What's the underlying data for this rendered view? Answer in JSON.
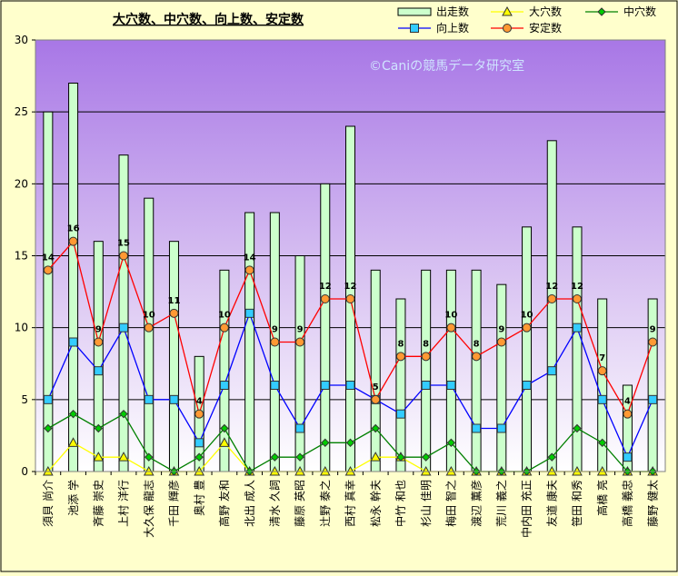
{
  "chart_data": {
    "type": "bar",
    "title": "大穴数、中穴数、向上数、安定数",
    "watermark": "©Caniの競馬データ研究室",
    "ylim": [
      0,
      30
    ],
    "yticks": [
      0,
      5,
      10,
      15,
      20,
      25,
      30
    ],
    "grid": true,
    "legend_position": "top-right",
    "categories": [
      "須貝 尚介",
      "池添 学",
      "斉藤 崇史",
      "上村 洋行",
      "大久保 龍志",
      "千田 輝彦",
      "奥村 豊",
      "高野 友和",
      "北出 成人",
      "清水 久詞",
      "藤原 英昭",
      "辻野 泰之",
      "西村 真幸",
      "松永 幹夫",
      "中竹 和也",
      "杉山 佳明",
      "梅田 智之",
      "渡辺 薫彦",
      "荒川 義之",
      "中内田 充正",
      "友道 康夫",
      "笹田 和秀",
      "高橋 亮",
      "高橋 義忠",
      "藤野 健太"
    ],
    "series": [
      {
        "name": "出走数",
        "kind": "bar",
        "color": "#CCFFCC",
        "stroke": "#000000",
        "values": [
          25,
          27,
          16,
          22,
          19,
          16,
          8,
          14,
          18,
          18,
          15,
          20,
          24,
          14,
          12,
          14,
          14,
          14,
          13,
          17,
          23,
          17,
          12,
          6,
          12
        ]
      },
      {
        "name": "大穴数",
        "kind": "line",
        "marker": "triangle",
        "color": "#FFFF00",
        "marker_fill": "#FFFF00",
        "values": [
          0,
          2,
          1,
          1,
          0,
          0,
          0,
          2,
          0,
          0,
          0,
          0,
          0,
          1,
          1,
          0,
          0,
          0,
          0,
          0,
          0,
          0,
          0,
          0,
          0
        ]
      },
      {
        "name": "中穴数",
        "kind": "line",
        "marker": "diamond",
        "color": "#008000",
        "marker_fill": "#00CC00",
        "values": [
          3,
          4,
          3,
          4,
          1,
          0,
          1,
          3,
          0,
          1,
          1,
          2,
          2,
          3,
          1,
          1,
          2,
          0,
          0,
          0,
          1,
          3,
          2,
          0,
          0
        ]
      },
      {
        "name": "向上数",
        "kind": "line",
        "marker": "square",
        "color": "#0000FF",
        "marker_fill": "#33CCFF",
        "values": [
          5,
          9,
          7,
          10,
          5,
          5,
          2,
          6,
          11,
          6,
          3,
          6,
          6,
          5,
          4,
          6,
          6,
          3,
          3,
          6,
          7,
          10,
          5,
          1,
          5
        ]
      },
      {
        "name": "安定数",
        "kind": "line",
        "marker": "circle",
        "color": "#FF0000",
        "marker_fill": "#FF9933",
        "labels": true,
        "values": [
          14,
          16,
          9,
          15,
          10,
          11,
          4,
          10,
          14,
          9,
          9,
          12,
          12,
          5,
          8,
          8,
          10,
          8,
          9,
          10,
          12,
          12,
          7,
          4,
          9
        ]
      }
    ]
  }
}
